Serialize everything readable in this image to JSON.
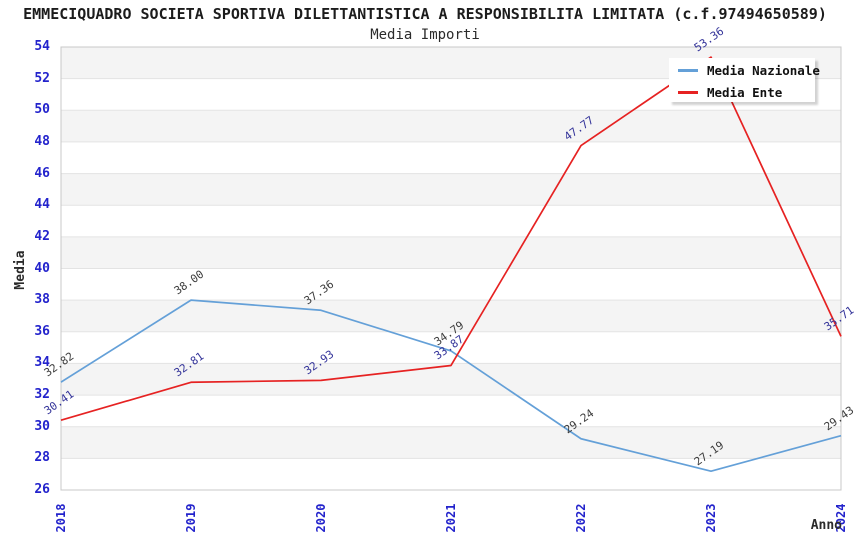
{
  "title": "EMMECIQUADRO SOCIETA SPORTIVA DILETTANTISTICA A RESPONSIBILITA LIMITATA (c.f.97494650589)",
  "subtitle": "Media Importi",
  "chart_data": {
    "type": "line",
    "x": [
      2018,
      2019,
      2020,
      2021,
      2022,
      2023,
      2024
    ],
    "xlabel": "Anno",
    "ylabel": "Media",
    "ylim": [
      26,
      54
    ],
    "ytick_step": 2,
    "grid": "horizontal-bands-alternating",
    "legend_position": "top-right",
    "series": [
      {
        "name": "Media Nazionale",
        "color": "#64a0d8",
        "label_color": "#3c3c3c",
        "values": [
          32.82,
          38.0,
          37.36,
          34.79,
          29.24,
          27.19,
          29.43
        ],
        "labels": [
          "32.82",
          "38.00",
          "37.36",
          "34.79",
          "29.24",
          "27.19",
          "29.43"
        ]
      },
      {
        "name": "Media Ente",
        "color": "#e62222",
        "label_color": "#333399",
        "values": [
          30.41,
          32.81,
          32.93,
          33.87,
          47.77,
          53.36,
          35.71
        ],
        "labels": [
          "30.41",
          "32.81",
          "32.93",
          "33.87",
          "47.77",
          "53.36",
          "35.71"
        ]
      }
    ],
    "style": {
      "band_color": "#f4f4f4",
      "grid_color": "#e3e3e3",
      "border_color": "#c8c8c8",
      "tick_color": "#2323cc"
    }
  }
}
